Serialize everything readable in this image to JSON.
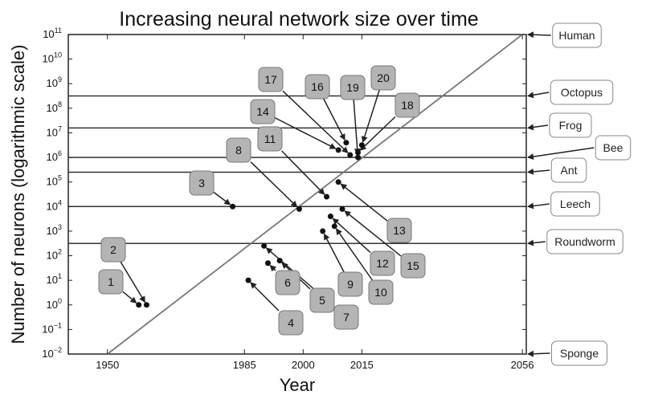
{
  "chart_data": {
    "type": "scatter",
    "title": "Increasing neural network size over time",
    "xlabel": "Year",
    "ylabel": "Number of neurons (logarithmic scale)",
    "x_scale": "linear",
    "y_scale": "log",
    "xlim": [
      1940,
      2057
    ],
    "ylim": [
      -2,
      11
    ],
    "x_ticks": [
      "1950",
      "1985",
      "2000",
      "2015",
      "2056"
    ],
    "y_ticks": [
      -2,
      -1,
      0,
      1,
      2,
      3,
      4,
      5,
      6,
      7,
      8,
      9,
      10,
      11
    ],
    "grid": false,
    "trend_line": {
      "from": [
        1950,
        -2
      ],
      "to": [
        2056,
        11
      ]
    },
    "reference_organisms": [
      {
        "name": "Human",
        "log10_neurons": 11
      },
      {
        "name": "Octopus",
        "log10_neurons": 8.5
      },
      {
        "name": "Frog",
        "log10_neurons": 7.2
      },
      {
        "name": "Bee",
        "log10_neurons": 6
      },
      {
        "name": "Ant",
        "log10_neurons": 5.4
      },
      {
        "name": "Leech",
        "log10_neurons": 4
      },
      {
        "name": "Roundworm",
        "log10_neurons": 2.5
      },
      {
        "name": "Sponge",
        "log10_neurons": -2
      }
    ],
    "points": [
      {
        "label": "1",
        "year": 1958,
        "log10_neurons": 0
      },
      {
        "label": "2",
        "year": 1960,
        "log10_neurons": 0
      },
      {
        "label": "3",
        "year": 1982,
        "log10_neurons": 4
      },
      {
        "label": "4",
        "year": 1986,
        "log10_neurons": 1
      },
      {
        "label": "5",
        "year": 1994,
        "log10_neurons": 1.8
      },
      {
        "label": "6",
        "year": 1991,
        "log10_neurons": 1.7
      },
      {
        "label": "7",
        "year": 1990,
        "log10_neurons": 2.4
      },
      {
        "label": "8",
        "year": 1999,
        "log10_neurons": 3.9
      },
      {
        "label": "9",
        "year": 2005,
        "log10_neurons": 3
      },
      {
        "label": "10",
        "year": 2008,
        "log10_neurons": 3.2
      },
      {
        "label": "11",
        "year": 2006,
        "log10_neurons": 4.4
      },
      {
        "label": "12",
        "year": 2007,
        "log10_neurons": 3.6
      },
      {
        "label": "13",
        "year": 2009,
        "log10_neurons": 5
      },
      {
        "label": "14",
        "year": 2009,
        "log10_neurons": 6.3
      },
      {
        "label": "15",
        "year": 2010,
        "log10_neurons": 3.9
      },
      {
        "label": "16",
        "year": 2011,
        "log10_neurons": 6.6
      },
      {
        "label": "17",
        "year": 2012,
        "log10_neurons": 6.1
      },
      {
        "label": "18",
        "year": 2014,
        "log10_neurons": 6.2
      },
      {
        "label": "19",
        "year": 2014,
        "log10_neurons": 6
      },
      {
        "label": "20",
        "year": 2015,
        "log10_neurons": 6.5
      }
    ]
  }
}
